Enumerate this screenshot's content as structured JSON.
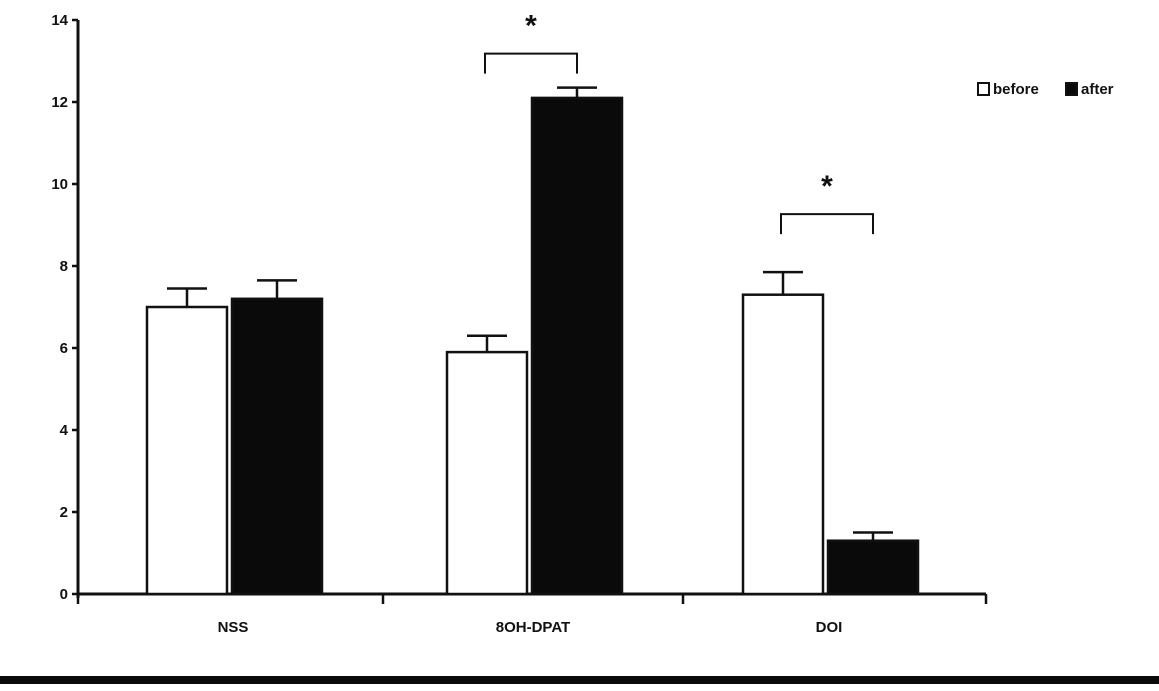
{
  "chart_data": {
    "type": "bar",
    "categories": [
      "NSS",
      "8OH-DPAT",
      "DOI"
    ],
    "series": [
      {
        "name": "before",
        "color": "#ffffff",
        "values": [
          7.0,
          5.9,
          7.3
        ],
        "errors": [
          0.45,
          0.4,
          0.55
        ]
      },
      {
        "name": "after",
        "color": "#0a0a0a",
        "values": [
          7.2,
          12.1,
          1.3
        ],
        "errors": [
          0.45,
          0.25,
          0.2
        ]
      }
    ],
    "ylim": [
      0,
      14
    ],
    "yticks": [
      "0",
      "2",
      "4",
      "6",
      "8",
      "10",
      "12",
      "14"
    ],
    "ytick_values": [
      0,
      2,
      4,
      6,
      8,
      10,
      12,
      14
    ],
    "legend": {
      "position": "top-right"
    },
    "significance": [
      {
        "category": "8OH-DPAT",
        "label": "*"
      },
      {
        "category": "DOI",
        "label": "*"
      }
    ],
    "grid": false,
    "title": "",
    "xlabel": "",
    "ylabel": ""
  }
}
